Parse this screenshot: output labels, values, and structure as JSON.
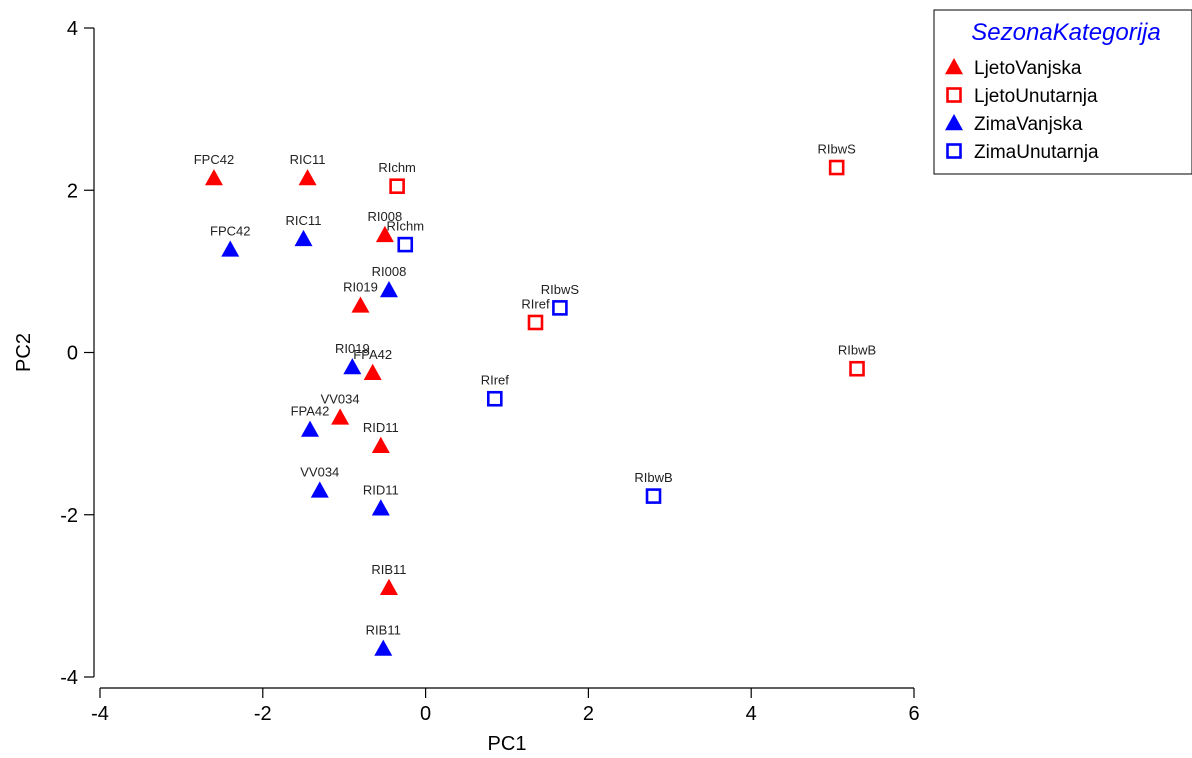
{
  "chart_data": {
    "type": "scatter",
    "xlabel": "PC1",
    "ylabel": "PC2",
    "xlim": [
      -4,
      6
    ],
    "ylim": [
      -4,
      4
    ],
    "xticks": [
      "-4",
      "-2",
      "0",
      "2",
      "4",
      "6"
    ],
    "yticks": [
      "-4",
      "-2",
      "0",
      "2",
      "4"
    ],
    "grid": false,
    "legend_title": "SezonaKategorija",
    "legend_position": "top-right",
    "series": [
      {
        "name": "LjetoVanjska",
        "marker": "filled-triangle",
        "color": "#ff0000",
        "points": [
          {
            "label": "FPC42",
            "x": -2.6,
            "y": 2.15
          },
          {
            "label": "RIC11",
            "x": -1.45,
            "y": 2.15
          },
          {
            "label": "RI008",
            "x": -0.5,
            "y": 1.45
          },
          {
            "label": "RI019",
            "x": -0.8,
            "y": 0.58
          },
          {
            "label": "FPA42",
            "x": -0.65,
            "y": -0.25
          },
          {
            "label": "VV034",
            "x": -1.05,
            "y": -0.8
          },
          {
            "label": "RID11",
            "x": -0.55,
            "y": -1.15
          },
          {
            "label": "RIB11",
            "x": -0.45,
            "y": -2.9
          }
        ]
      },
      {
        "name": "LjetoUnutarnja",
        "marker": "open-square",
        "color": "#ff0000",
        "points": [
          {
            "label": "RIchm",
            "x": -0.35,
            "y": 2.05
          },
          {
            "label": "RIref",
            "x": 1.35,
            "y": 0.37
          },
          {
            "label": "RIbwS",
            "x": 5.05,
            "y": 2.28
          },
          {
            "label": "RIbwB",
            "x": 5.3,
            "y": -0.2
          }
        ]
      },
      {
        "name": "ZimaVanjska",
        "marker": "filled-triangle",
        "color": "#0000ff",
        "points": [
          {
            "label": "FPC42",
            "x": -2.4,
            "y": 1.27
          },
          {
            "label": "RIC11",
            "x": -1.5,
            "y": 1.4
          },
          {
            "label": "RI008",
            "x": -0.45,
            "y": 0.77
          },
          {
            "label": "RI019",
            "x": -0.9,
            "y": -0.18
          },
          {
            "label": "FPA42",
            "x": -1.42,
            "y": -0.95
          },
          {
            "label": "VV034",
            "x": -1.3,
            "y": -1.7
          },
          {
            "label": "RID11",
            "x": -0.55,
            "y": -1.92
          },
          {
            "label": "RIB11",
            "x": -0.52,
            "y": -3.65
          }
        ]
      },
      {
        "name": "ZimaUnutarnja",
        "marker": "open-square",
        "color": "#0000ff",
        "points": [
          {
            "label": "RIchm",
            "x": -0.25,
            "y": 1.33
          },
          {
            "label": "RIbwS",
            "x": 1.65,
            "y": 0.55
          },
          {
            "label": "RIref",
            "x": 0.85,
            "y": -0.57
          },
          {
            "label": "RIbwB",
            "x": 2.8,
            "y": -1.77
          }
        ]
      }
    ]
  }
}
